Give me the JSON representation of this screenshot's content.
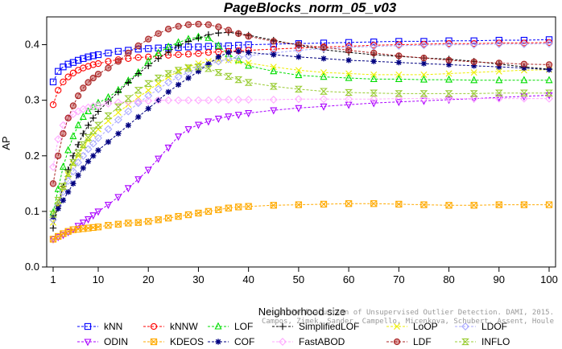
{
  "chart_data": {
    "type": "line",
    "title": "PageBlocks_norm_05_v03",
    "xlabel": "Neighborhood size",
    "ylabel": "AP",
    "xlim": [
      1,
      100
    ],
    "ylim": [
      0,
      0.45
    ],
    "xticks": [
      1,
      10,
      20,
      30,
      40,
      50,
      60,
      70,
      80,
      90,
      100
    ],
    "yticks": [
      0.0,
      0.1,
      0.2,
      0.3,
      0.4
    ],
    "ytick_labels": [
      "0.0",
      "0.1",
      "0.2",
      "0.3",
      "0.4"
    ],
    "grid": false,
    "legend_position": "bottom",
    "x": [
      1,
      2,
      3,
      4,
      5,
      6,
      7,
      8,
      9,
      10,
      12,
      14,
      16,
      18,
      20,
      22,
      24,
      26,
      28,
      30,
      32,
      34,
      36,
      38,
      40,
      45,
      50,
      55,
      60,
      65,
      70,
      75,
      80,
      85,
      90,
      95,
      100
    ],
    "series": [
      {
        "name": "kNN",
        "color": "#0000ff",
        "marker": "square",
        "values": [
          0.333,
          0.352,
          0.36,
          0.365,
          0.368,
          0.372,
          0.375,
          0.378,
          0.38,
          0.382,
          0.385,
          0.388,
          0.39,
          0.392,
          0.393,
          0.394,
          0.395,
          0.395,
          0.396,
          0.396,
          0.397,
          0.397,
          0.398,
          0.399,
          0.4,
          0.401,
          0.402,
          0.403,
          0.404,
          0.405,
          0.406,
          0.406,
          0.407,
          0.407,
          0.408,
          0.408,
          0.409
        ]
      },
      {
        "name": "kNNW",
        "color": "#ff0000",
        "marker": "circle",
        "values": [
          0.292,
          0.318,
          0.333,
          0.342,
          0.349,
          0.354,
          0.358,
          0.361,
          0.364,
          0.366,
          0.37,
          0.373,
          0.375,
          0.377,
          0.378,
          0.38,
          0.381,
          0.382,
          0.383,
          0.384,
          0.386,
          0.387,
          0.388,
          0.389,
          0.39,
          0.392,
          0.394,
          0.396,
          0.397,
          0.399,
          0.4,
          0.401,
          0.402,
          0.402,
          0.403,
          0.403,
          0.404
        ]
      },
      {
        "name": "LOF",
        "color": "#00dd00",
        "marker": "triangle",
        "values": [
          0.098,
          0.14,
          0.18,
          0.21,
          0.235,
          0.255,
          0.27,
          0.28,
          0.288,
          0.295,
          0.305,
          0.318,
          0.335,
          0.35,
          0.37,
          0.385,
          0.396,
          0.404,
          0.41,
          0.414,
          0.412,
          0.398,
          0.383,
          0.372,
          0.362,
          0.352,
          0.345,
          0.342,
          0.34,
          0.338,
          0.338,
          0.337,
          0.337,
          0.336,
          0.336,
          0.336,
          0.336
        ]
      },
      {
        "name": "SimplifiedLOF",
        "color": "#000000",
        "marker": "plus",
        "values": [
          0.07,
          0.11,
          0.145,
          0.175,
          0.2,
          0.22,
          0.24,
          0.255,
          0.268,
          0.28,
          0.298,
          0.315,
          0.332,
          0.348,
          0.362,
          0.375,
          0.387,
          0.398,
          0.406,
          0.412,
          0.418,
          0.421,
          0.422,
          0.42,
          0.417,
          0.408,
          0.399,
          0.391,
          0.386,
          0.382,
          0.379,
          0.376,
          0.374,
          0.37,
          0.365,
          0.36,
          0.356
        ]
      },
      {
        "name": "LoOP",
        "color": "#eeee00",
        "marker": "x",
        "values": [
          0.08,
          0.11,
          0.14,
          0.165,
          0.185,
          0.2,
          0.215,
          0.228,
          0.238,
          0.248,
          0.263,
          0.278,
          0.292,
          0.305,
          0.318,
          0.33,
          0.342,
          0.352,
          0.36,
          0.366,
          0.37,
          0.372,
          0.372,
          0.37,
          0.367,
          0.36,
          0.354,
          0.35,
          0.348,
          0.346,
          0.346,
          0.346,
          0.348,
          0.35,
          0.352,
          0.354,
          0.355
        ]
      },
      {
        "name": "LDOF",
        "color": "#aaaaff",
        "marker": "diamond",
        "values": [
          0.085,
          0.11,
          0.135,
          0.155,
          0.172,
          0.188,
          0.2,
          0.212,
          0.222,
          0.232,
          0.248,
          0.265,
          0.28,
          0.295,
          0.308,
          0.32,
          0.332,
          0.342,
          0.35,
          0.358,
          0.364,
          0.37,
          0.374,
          0.377,
          0.38,
          0.385,
          0.39,
          0.393,
          0.395,
          0.397,
          0.398,
          0.399,
          0.4,
          0.4,
          0.401,
          0.401,
          0.402
        ]
      },
      {
        "name": "ODIN",
        "color": "#aa00ff",
        "marker": "triangle-down",
        "values": [
          0.05,
          0.054,
          0.058,
          0.063,
          0.068,
          0.074,
          0.08,
          0.086,
          0.093,
          0.1,
          0.112,
          0.126,
          0.142,
          0.158,
          0.175,
          0.195,
          0.215,
          0.235,
          0.248,
          0.256,
          0.262,
          0.267,
          0.271,
          0.274,
          0.277,
          0.282,
          0.286,
          0.289,
          0.292,
          0.295,
          0.297,
          0.299,
          0.301,
          0.303,
          0.305,
          0.307,
          0.309
        ]
      },
      {
        "name": "KDEOS",
        "color": "#ffaa00",
        "marker": "square-x",
        "values": [
          0.05,
          0.055,
          0.06,
          0.064,
          0.067,
          0.068,
          0.069,
          0.07,
          0.071,
          0.072,
          0.075,
          0.077,
          0.079,
          0.08,
          0.082,
          0.085,
          0.088,
          0.091,
          0.094,
          0.097,
          0.1,
          0.103,
          0.106,
          0.108,
          0.109,
          0.111,
          0.112,
          0.113,
          0.114,
          0.114,
          0.113,
          0.112,
          0.111,
          0.111,
          0.112,
          0.112,
          0.112
        ]
      },
      {
        "name": "COF",
        "color": "#000080",
        "marker": "asterisk",
        "values": [
          0.09,
          0.105,
          0.12,
          0.135,
          0.15,
          0.165,
          0.178,
          0.19,
          0.2,
          0.21,
          0.225,
          0.24,
          0.255,
          0.27,
          0.285,
          0.3,
          0.315,
          0.328,
          0.34,
          0.352,
          0.365,
          0.378,
          0.386,
          0.388,
          0.386,
          0.382,
          0.378,
          0.375,
          0.372,
          0.37,
          0.368,
          0.366,
          0.364,
          0.362,
          0.36,
          0.358,
          0.355
        ]
      },
      {
        "name": "FastABOD",
        "color": "#ffaaff",
        "marker": "diamond",
        "values": [
          0.18,
          0.23,
          0.255,
          0.268,
          0.275,
          0.28,
          0.284,
          0.287,
          0.289,
          0.291,
          0.294,
          0.296,
          0.297,
          0.298,
          0.299,
          0.3,
          0.3,
          0.3,
          0.3,
          0.3,
          0.3,
          0.301,
          0.301,
          0.301,
          0.301,
          0.301,
          0.302,
          0.302,
          0.302,
          0.302,
          0.303,
          0.303,
          0.303,
          0.303,
          0.303,
          0.303,
          0.303
        ]
      },
      {
        "name": "LDF",
        "color": "#aa2222",
        "marker": "circle-dot",
        "values": [
          0.15,
          0.2,
          0.24,
          0.268,
          0.29,
          0.308,
          0.322,
          0.332,
          0.34,
          0.347,
          0.358,
          0.37,
          0.385,
          0.398,
          0.41,
          0.42,
          0.428,
          0.433,
          0.436,
          0.437,
          0.436,
          0.432,
          0.426,
          0.42,
          0.415,
          0.406,
          0.4,
          0.395,
          0.39,
          0.385,
          0.38,
          0.376,
          0.372,
          0.369,
          0.367,
          0.365,
          0.364
        ]
      },
      {
        "name": "INFLO",
        "color": "#99cc33",
        "marker": "hourglass",
        "values": [
          0.095,
          0.12,
          0.145,
          0.168,
          0.188,
          0.205,
          0.22,
          0.233,
          0.245,
          0.255,
          0.272,
          0.288,
          0.303,
          0.318,
          0.33,
          0.34,
          0.348,
          0.354,
          0.358,
          0.36,
          0.357,
          0.35,
          0.343,
          0.337,
          0.332,
          0.325,
          0.32,
          0.316,
          0.314,
          0.313,
          0.312,
          0.312,
          0.312,
          0.312,
          0.313,
          0.313,
          0.313
        ]
      }
    ],
    "annotation": "Campos, Zimek, Sander, Campello, Micenkova, Schubert, Assent, Houle"
  },
  "credit_line1": "On the Evaluation of Unsupervised Outlier Detection. DAMI, 2015.",
  "credit_line2": "Campos, Zimek, Sander, Campello, Micenkova, Schubert, Assent, Houle"
}
